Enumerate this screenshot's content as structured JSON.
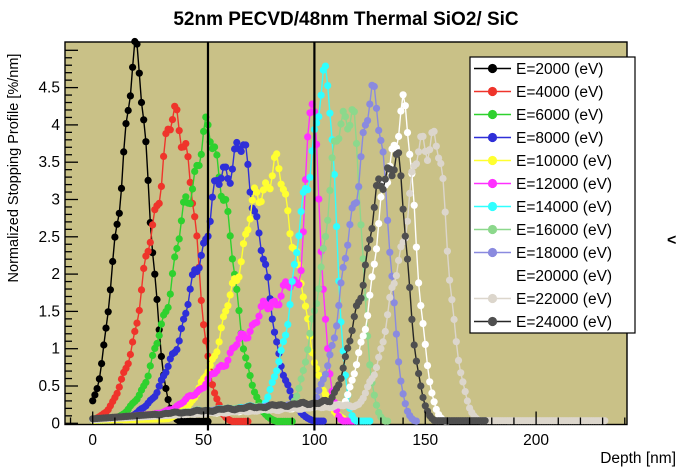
{
  "title": "52nm PECVD/48nm Thermal SiO2/ SiC",
  "stray_glyph": "<",
  "frame_bg_color": "#c9c187",
  "axes": {
    "x": {
      "label": "Depth [nm]",
      "range": [
        -12.5,
        241
      ],
      "major_ticks": [
        0,
        50,
        100,
        150,
        200
      ],
      "minor_step": 10,
      "unit": "nm"
    },
    "y": {
      "label": "Normalized Stopping Profile [%/nm]",
      "range": [
        0,
        5.11
      ],
      "major_ticks": [
        0,
        0.5,
        1,
        1.5,
        2,
        2.5,
        3,
        3.5,
        4,
        4.5
      ],
      "minor_step": 0.1,
      "unit": "%/nm"
    }
  },
  "interface_lines_nm": [
    52,
    100
  ],
  "legend": {
    "position": "top-right",
    "entries_note": "entry E=20000 (eV) drawn in white (marker/line invisible on white box)"
  },
  "chart_data": {
    "type": "line",
    "title": "52nm PECVD/48nm Thermal SiO2/ SiC",
    "xlabel": "Depth [nm]",
    "ylabel": "Normalized Stopping Profile [%/nm]",
    "xlim": [
      -12.5,
      241
    ],
    "ylim": [
      0,
      5.11
    ],
    "grid": false,
    "legend_position": "top-right",
    "marker": "filled-circle",
    "sample_step_nm": 1,
    "series": [
      {
        "label": "E=2000 (eV)",
        "energy_eV": 2000,
        "color": "#000000",
        "line_color": "#000000",
        "peak_x": 20,
        "peak_y": 4.75,
        "wl": 8.5,
        "wr": 6,
        "f0": 0.03,
        "f1": 0.03,
        "end": 52,
        "tail": 0.025,
        "seed": 1
      },
      {
        "label": "E=4000 (eV)",
        "energy_eV": 4000,
        "color": "#ef342b",
        "line_color": "#ef342b",
        "peak_x": 39,
        "peak_y": 4.08,
        "wl": 13,
        "wr": 7.5,
        "f0": 0.04,
        "f1": 0.04,
        "end": 70,
        "tail": 0.025,
        "seed": 2
      },
      {
        "label": "E=6000 (eV)",
        "energy_eV": 6000,
        "color": "#2ed12e",
        "line_color": "#2ed12e",
        "peak_x": 53,
        "peak_y": 3.8,
        "wl": 15,
        "wr": 9.5,
        "f0": 0.04,
        "f1": 0.05,
        "end": 90,
        "tail": 0.025,
        "seed": 3
      },
      {
        "label": "E=8000 (eV)",
        "energy_eV": 8000,
        "color": "#2f2fd8",
        "line_color": "#2f2fd8",
        "peak_x": 66,
        "peak_y": 3.62,
        "wl": 18,
        "wr": 11,
        "f0": 0.04,
        "f1": 0.06,
        "end": 104,
        "tail": 0.03,
        "seed": 4
      },
      {
        "label": "E=10000 (eV)",
        "energy_eV": 10000,
        "color": "#ffff30",
        "line_color": "#ffff30",
        "peak_x": 82,
        "peak_y": 3.35,
        "wl": 17,
        "wr": 11,
        "f0": 0.04,
        "f1": 0.09,
        "end": 113,
        "tail": 0.03,
        "seed": 5
      },
      {
        "label": "E=12000 (eV)",
        "energy_eV": 12000,
        "color": "#ff30ff",
        "line_color": "#ff30ff",
        "peak_x": 95,
        "peak_y": 1.85,
        "wl": 28,
        "wr": 5,
        "comp2": {
          "peak_x": 99,
          "peak_y": 2.85,
          "wl": 2.5,
          "wr": 4.5
        },
        "f0": 0.05,
        "f1": 0.3,
        "end": 119,
        "tail": 0.03,
        "seed": 6
      },
      {
        "label": "E=14000 (eV)",
        "energy_eV": 14000,
        "color": "#30ffff",
        "line_color": "#30ffff",
        "peak_x": 106,
        "peak_y": 4.45,
        "wl": 12,
        "wr": 4,
        "f0": 0.05,
        "f1": 0.3,
        "end": 125,
        "tail": 0.03,
        "seed": 7
      },
      {
        "label": "E=16000 (eV)",
        "energy_eV": 16000,
        "color": "#8cd88c",
        "line_color": "#8cd88c",
        "peak_x": 116,
        "peak_y": 4.3,
        "wl": 11,
        "wr": 5,
        "f0": 0.05,
        "f1": 0.3,
        "end": 133,
        "tail": 0.03,
        "seed": 8
      },
      {
        "label": "E=18000 (eV)",
        "energy_eV": 18000,
        "color": "#8a8adf",
        "line_color": "#8a8adf",
        "peak_x": 128,
        "peak_y": 4.28,
        "wl": 12,
        "wr": 5.5,
        "f0": 0.05,
        "f1": 0.32,
        "end": 146,
        "tail": 0.03,
        "seed": 9
      },
      {
        "label": "E=20000 (eV)",
        "energy_eV": 20000,
        "color": "#ffffff",
        "line_color": "#ffffff",
        "peak_x": 140,
        "peak_y": 4.08,
        "wl": 11.5,
        "wr": 6,
        "f0": 0.05,
        "f1": 0.3,
        "end": 160,
        "tail": 0.03,
        "seed": 10
      },
      {
        "label": "E=22000 (eV)",
        "energy_eV": 22000,
        "color": "#dcd6cc",
        "line_color": "#dcd6cc",
        "peak_x": 153,
        "peak_y": 3.9,
        "wl": 14,
        "wr": 7,
        "f0": 0.05,
        "f1": 0.3,
        "end": 231,
        "tail": 0.035,
        "seed": 11
      },
      {
        "label": "E=24000 (eV)",
        "energy_eV": 24000,
        "color": "#4f4f4f",
        "line_color": "#262626",
        "peak_x": 136,
        "peak_y": 3.55,
        "wl": 13,
        "wr": 6,
        "f0": 0.06,
        "f1": 0.35,
        "end": 177,
        "tail": 0.035,
        "seed": 12
      }
    ]
  }
}
